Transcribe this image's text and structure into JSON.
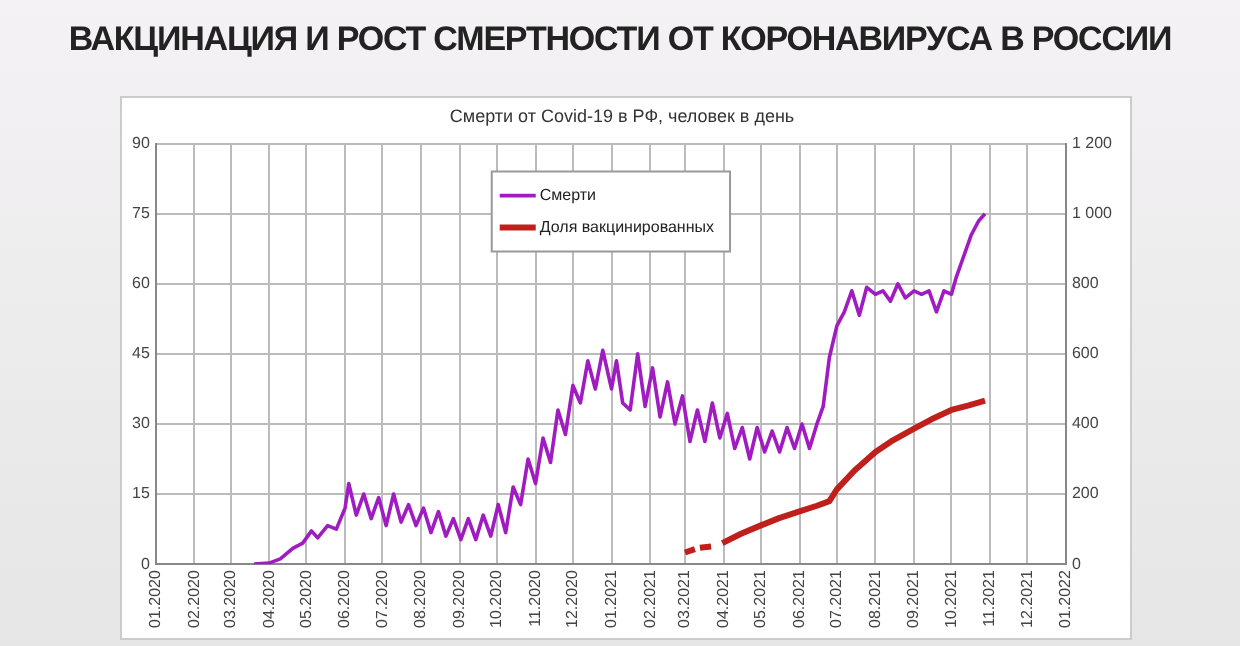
{
  "chart_data": {
    "type": "line",
    "title": "ВАКЦИНАЦИЯ И РОСТ СМЕРТНОСТИ ОТ КОРОНАВИРУСА В РОССИИ",
    "subtitle": "Смерти от Covid-19 в РФ, человек в день",
    "xlim": [
      "2020-01-01",
      "2022-01-01"
    ],
    "xticks": [
      {
        "value": "2020-01-01",
        "label": "01.2020"
      },
      {
        "value": "2020-02-01",
        "label": "02.2020"
      },
      {
        "value": "2020-03-01",
        "label": "03.2020"
      },
      {
        "value": "2020-04-01",
        "label": "04.2020"
      },
      {
        "value": "2020-05-01",
        "label": "05.2020"
      },
      {
        "value": "2020-06-01",
        "label": "06.2020"
      },
      {
        "value": "2020-07-01",
        "label": "07.2020"
      },
      {
        "value": "2020-08-01",
        "label": "08.2020"
      },
      {
        "value": "2020-09-01",
        "label": "09.2020"
      },
      {
        "value": "2020-10-01",
        "label": "10.2020"
      },
      {
        "value": "2020-11-01",
        "label": "11.2020"
      },
      {
        "value": "2020-12-01",
        "label": "12.2020"
      },
      {
        "value": "2021-01-01",
        "label": "01.2021"
      },
      {
        "value": "2021-02-01",
        "label": "02.2021"
      },
      {
        "value": "2021-03-01",
        "label": "03.2021"
      },
      {
        "value": "2021-04-01",
        "label": "04.2021"
      },
      {
        "value": "2021-05-01",
        "label": "05.2021"
      },
      {
        "value": "2021-06-01",
        "label": "06.2021"
      },
      {
        "value": "2021-07-01",
        "label": "07.2021"
      },
      {
        "value": "2021-08-01",
        "label": "08.2021"
      },
      {
        "value": "2021-09-01",
        "label": "09.2021"
      },
      {
        "value": "2021-10-01",
        "label": "10.2021"
      },
      {
        "value": "2021-11-01",
        "label": "11.2021"
      },
      {
        "value": "2021-12-01",
        "label": "12.2021"
      },
      {
        "value": "2022-01-01",
        "label": "01.2022"
      }
    ],
    "ylim": [
      0,
      90
    ],
    "yticks": [
      0,
      15,
      30,
      45,
      60,
      75,
      90
    ],
    "y2lim": [
      0,
      1200
    ],
    "y2ticks": [
      0,
      200,
      400,
      600,
      800,
      {
        "value": 1000,
        "label": "1 000"
      },
      {
        "value": 1200,
        "label": "1 200"
      }
    ],
    "grid": true,
    "legend": "top",
    "marker": "none",
    "series": [
      {
        "name": "Смерти",
        "color": "#a01cc0",
        "axis": "y2",
        "x": [
          "2020-03-20",
          "2020-04-01",
          "2020-04-10",
          "2020-04-20",
          "2020-04-28",
          "2020-05-05",
          "2020-05-10",
          "2020-05-18",
          "2020-05-25",
          "2020-06-01",
          "2020-06-04",
          "2020-06-10",
          "2020-06-16",
          "2020-06-22",
          "2020-06-28",
          "2020-07-04",
          "2020-07-10",
          "2020-07-16",
          "2020-07-22",
          "2020-07-28",
          "2020-08-03",
          "2020-08-09",
          "2020-08-15",
          "2020-08-21",
          "2020-08-27",
          "2020-09-02",
          "2020-09-08",
          "2020-09-14",
          "2020-09-20",
          "2020-09-26",
          "2020-10-02",
          "2020-10-08",
          "2020-10-14",
          "2020-10-20",
          "2020-10-26",
          "2020-11-01",
          "2020-11-07",
          "2020-11-13",
          "2020-11-19",
          "2020-11-25",
          "2020-12-01",
          "2020-12-07",
          "2020-12-13",
          "2020-12-19",
          "2020-12-25",
          "2021-01-01",
          "2021-01-05",
          "2021-01-10",
          "2021-01-16",
          "2021-01-22",
          "2021-01-28",
          "2021-02-03",
          "2021-02-09",
          "2021-02-15",
          "2021-02-21",
          "2021-02-27",
          "2021-03-05",
          "2021-03-11",
          "2021-03-17",
          "2021-03-23",
          "2021-03-29",
          "2021-04-04",
          "2021-04-10",
          "2021-04-16",
          "2021-04-22",
          "2021-04-28",
          "2021-05-04",
          "2021-05-10",
          "2021-05-16",
          "2021-05-22",
          "2021-05-28",
          "2021-06-03",
          "2021-06-09",
          "2021-06-15",
          "2021-06-20",
          "2021-06-25",
          "2021-07-01",
          "2021-07-07",
          "2021-07-13",
          "2021-07-19",
          "2021-07-25",
          "2021-08-01",
          "2021-08-07",
          "2021-08-13",
          "2021-08-19",
          "2021-08-25",
          "2021-09-01",
          "2021-09-07",
          "2021-09-13",
          "2021-09-19",
          "2021-09-25",
          "2021-10-01",
          "2021-10-05",
          "2021-10-11",
          "2021-10-17",
          "2021-10-23",
          "2021-10-28"
        ],
        "values": [
          0,
          3,
          15,
          45,
          60,
          95,
          75,
          110,
          100,
          160,
          230,
          140,
          200,
          130,
          190,
          110,
          200,
          120,
          170,
          110,
          160,
          90,
          150,
          80,
          130,
          70,
          130,
          70,
          140,
          80,
          170,
          90,
          220,
          170,
          300,
          230,
          360,
          290,
          440,
          370,
          510,
          460,
          580,
          500,
          610,
          500,
          580,
          460,
          440,
          600,
          450,
          560,
          420,
          520,
          400,
          480,
          350,
          440,
          350,
          460,
          360,
          430,
          330,
          390,
          300,
          390,
          320,
          380,
          320,
          390,
          330,
          400,
          330,
          400,
          450,
          590,
          680,
          720,
          780,
          710,
          790,
          770,
          780,
          750,
          800,
          760,
          780,
          770,
          780,
          720,
          780,
          770,
          820,
          880,
          940,
          980,
          1000
        ]
      },
      {
        "name": "Доля вакцинированных",
        "color": "#c0201c",
        "x": [
          "2021-03-01",
          "2021-03-09",
          "2021-03-11",
          "2021-03-13",
          "2021-03-22",
          "2021-03-25",
          "2021-03-31",
          "2021-04-15",
          "2021-05-01",
          "2021-05-15",
          "2021-06-01",
          "2021-06-15",
          "2021-06-25",
          "2021-07-01",
          "2021-07-15",
          "2021-08-01",
          "2021-08-15",
          "2021-09-01",
          "2021-09-15",
          "2021-10-01",
          "2021-10-15",
          "2021-10-28"
        ],
        "values": [
          2.5,
          3.2,
          null,
          3.5,
          3.8,
          null,
          4.5,
          6.5,
          8.3,
          9.8,
          11.3,
          12.5,
          13.5,
          16,
          20,
          24,
          26.5,
          29,
          31,
          33,
          34,
          35
        ]
      }
    ]
  }
}
